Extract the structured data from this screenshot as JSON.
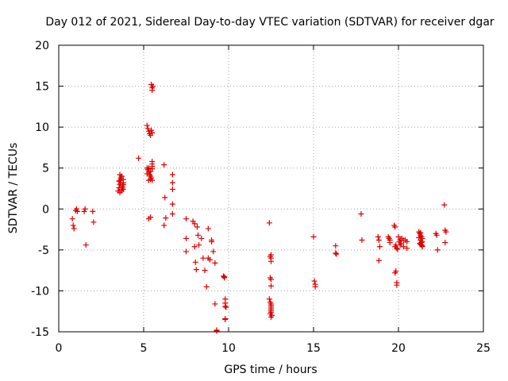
{
  "chart_data": {
    "type": "scatter",
    "title": "Day 012 of 2021, Sidereal Day-to-day VTEC variation (SDTVAR) for receiver dgar",
    "xlabel": "GPS time / hours",
    "ylabel": "SDTVAR / TECUs",
    "xlim": [
      0,
      25
    ],
    "ylim": [
      -15,
      20
    ],
    "xticks": [
      0,
      5,
      10,
      15,
      20,
      25
    ],
    "yticks": [
      -15,
      -10,
      -5,
      0,
      5,
      10,
      15,
      20
    ],
    "xtick_labels": [
      "0",
      "5",
      "10",
      "15",
      "20",
      "25"
    ],
    "ytick_labels": [
      "-15",
      "-10",
      "-5",
      "0",
      "5",
      "10",
      "15",
      "20"
    ],
    "grid": true,
    "marker": "plus",
    "color": "#e00000",
    "series": [
      {
        "name": "SDTVAR",
        "x": [
          0.8,
          0.85,
          0.9,
          1.0,
          1.05,
          1.1,
          1.5,
          1.55,
          1.6,
          2.0,
          2.05,
          3.5,
          3.55,
          3.6,
          3.6,
          3.65,
          3.7,
          3.7,
          3.75,
          3.8,
          3.8,
          3.6,
          3.7,
          3.8,
          3.65,
          3.75,
          3.55,
          3.7,
          3.8,
          3.6,
          4.7,
          5.2,
          5.25,
          5.3,
          5.35,
          5.4,
          5.45,
          5.5,
          5.2,
          5.3,
          5.4,
          5.5,
          5.25,
          5.35,
          5.45,
          5.5,
          5.3,
          5.4,
          5.5,
          5.2,
          5.3,
          5.4,
          5.5,
          5.45,
          5.5,
          5.5,
          5.55,
          5.5,
          5.4,
          5.3,
          6.2,
          6.25,
          6.3,
          6.2,
          6.7,
          6.7,
          6.7,
          6.7,
          6.7,
          7.5,
          7.5,
          7.5,
          7.9,
          8.0,
          8.0,
          8.05,
          8.1,
          8.15,
          8.2,
          8.25,
          8.4,
          8.5,
          8.6,
          8.7,
          8.8,
          8.8,
          8.9,
          9.0,
          9.0,
          9.1,
          9.2,
          9.2,
          9.3,
          9.3,
          9.7,
          9.75,
          9.8,
          9.8,
          9.8,
          9.85,
          9.8,
          9.8,
          9.75,
          12.4,
          12.45,
          12.5,
          12.5,
          12.5,
          12.45,
          12.5,
          12.5,
          12.4,
          12.45,
          12.5,
          12.5,
          12.5,
          12.5,
          12.55,
          12.5,
          12.45,
          12.5,
          12.5,
          15.0,
          15.05,
          15.1,
          15.1,
          16.3,
          16.3,
          16.35,
          17.8,
          17.85,
          18.8,
          18.85,
          18.9,
          18.85,
          19.4,
          19.45,
          19.5,
          19.45,
          19.5,
          19.75,
          19.8,
          19.85,
          19.8,
          19.8,
          19.85,
          19.9,
          19.9,
          19.9,
          19.95,
          20.0,
          20.05,
          20.1,
          20.15,
          20.2,
          20.3,
          20.4,
          20.5,
          20.1,
          20.3,
          20.5,
          21.2,
          21.25,
          21.3,
          21.35,
          21.4,
          21.3,
          21.4,
          21.25,
          21.35,
          21.4,
          21.3,
          21.2,
          21.35,
          21.4,
          21.3,
          22.2,
          22.25,
          22.3,
          22.7,
          22.75,
          22.8,
          22.75
        ],
        "y": [
          -1.2,
          -2.0,
          -2.4,
          -0.2,
          0.0,
          -0.3,
          -0.3,
          0.0,
          -4.4,
          -0.3,
          -1.6,
          2.2,
          2.6,
          3.0,
          3.5,
          3.8,
          4.0,
          2.4,
          2.8,
          3.2,
          3.6,
          4.2,
          2.2,
          2.4,
          3.2,
          2.6,
          3.4,
          4.0,
          3.0,
          2.0,
          6.2,
          10.2,
          9.8,
          9.5,
          9.2,
          9.0,
          9.6,
          9.3,
          5.0,
          4.5,
          4.0,
          5.5,
          4.8,
          4.2,
          3.8,
          5.2,
          5.0,
          4.6,
          4.9,
          4.3,
          3.5,
          3.6,
          3.5,
          15.2,
          14.8,
          14.5,
          15.0,
          5.8,
          -1.0,
          -1.2,
          5.4,
          1.4,
          -1.1,
          -2.0,
          4.2,
          3.2,
          2.4,
          0.6,
          -0.6,
          -1.2,
          -3.6,
          -5.2,
          -1.5,
          -1.8,
          -4.6,
          -6.5,
          -7.4,
          -2.2,
          -3.2,
          -4.4,
          -3.6,
          -6.0,
          -7.5,
          -9.5,
          -6.0,
          -2.4,
          -6.2,
          -3.8,
          -4.0,
          -5.2,
          -6.6,
          -11.6,
          -14.8,
          -14.9,
          -8.2,
          -8.4,
          -11.0,
          -11.5,
          -11.9,
          -12.0,
          -13.4,
          -13.5,
          -8.3,
          -1.7,
          -5.8,
          -6.0,
          -6.4,
          -5.6,
          -8.4,
          -8.6,
          -9.4,
          -11.0,
          -11.4,
          -11.6,
          -12.0,
          -12.2,
          -12.6,
          -13.0,
          -13.2,
          -12.8,
          -12.4,
          -11.8,
          -3.4,
          -8.8,
          -9.2,
          -9.5,
          -4.5,
          -5.4,
          -5.5,
          -0.6,
          -3.8,
          -3.4,
          -3.8,
          -4.6,
          -6.3,
          -3.4,
          -3.6,
          -3.8,
          -3.6,
          -4.1,
          -2.0,
          -2.2,
          -4.4,
          -4.6,
          -7.8,
          -7.6,
          -9.0,
          -9.3,
          -4.8,
          -4.9,
          -3.4,
          -4.0,
          -3.8,
          -4.2,
          -3.6,
          -4.6,
          -3.8,
          -4.8,
          -4.4,
          -3.8,
          -4.0,
          -2.8,
          -3.0,
          -3.2,
          -3.4,
          -3.6,
          -3.8,
          -4.0,
          -4.2,
          -4.4,
          -4.6,
          -2.9,
          -3.5,
          -4.1,
          -4.5,
          -4.3,
          -3.0,
          -3.2,
          -5.0,
          0.5,
          -2.6,
          -2.8,
          -4.1
        ]
      }
    ]
  }
}
